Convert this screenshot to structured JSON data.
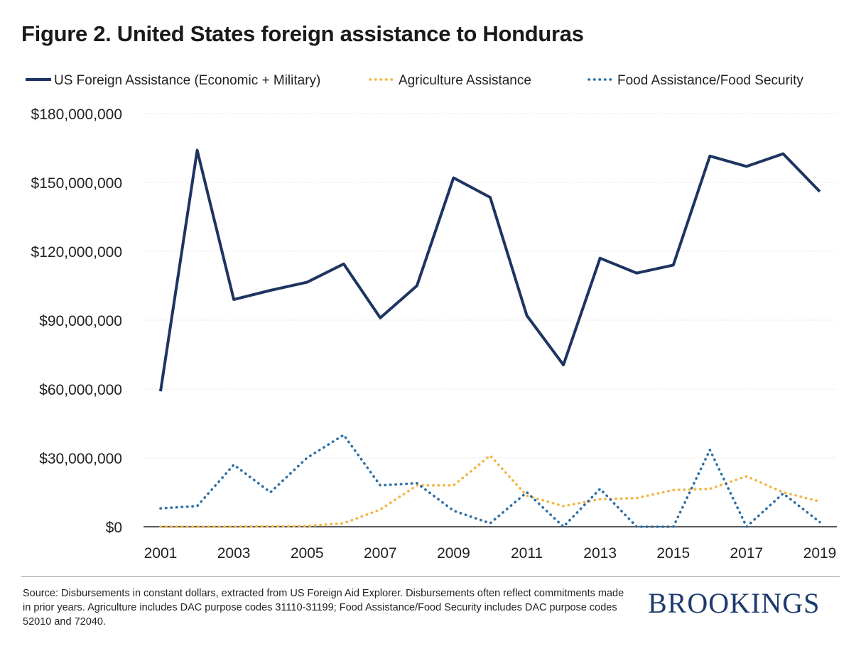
{
  "title": "Figure 2. United States foreign assistance to Honduras",
  "source": "Source: Disbursements in constant dollars, extracted from US Foreign Aid Explorer. Disbursements often reflect commitments made in prior years. Agriculture includes DAC purpose codes 31110-31199; Food Assistance/Food Security includes DAC purpose codes 52010 and 72040.",
  "brand": "BROOKINGS",
  "chart_data": {
    "type": "line",
    "title": "Figure 2. United States foreign assistance to Honduras",
    "xlabel": "",
    "ylabel": "",
    "ylim": [
      0,
      180000000
    ],
    "grid": "horizontal",
    "legend_position": "top",
    "x": [
      2001,
      2002,
      2003,
      2004,
      2005,
      2006,
      2007,
      2008,
      2009,
      2010,
      2011,
      2012,
      2013,
      2014,
      2015,
      2016,
      2017,
      2018,
      2019
    ],
    "x_tick_labels": [
      "2001",
      "2003",
      "2005",
      "2007",
      "2009",
      "2011",
      "2013",
      "2015",
      "2017",
      "2019"
    ],
    "y_ticks": [
      0,
      30000000,
      60000000,
      90000000,
      120000000,
      150000000,
      180000000
    ],
    "y_tick_labels": [
      "$0",
      "$30,000,000",
      "$60,000,000",
      "$90,000,000",
      "$120,000,000",
      "$150,000,000",
      "$180,000,000"
    ],
    "series": [
      {
        "name": "US Foreign Assistance (Economic + Military)",
        "style": "solid",
        "color": "#1e3461",
        "values": [
          59000000,
          164000000,
          99000000,
          103000000,
          106500000,
          114500000,
          91000000,
          105000000,
          152000000,
          143500000,
          92000000,
          70500000,
          117000000,
          110500000,
          114000000,
          161500000,
          157000000,
          162500000,
          146000000
        ]
      },
      {
        "name": "Agriculture Assistance",
        "style": "dotted",
        "color": "#f2b544",
        "values": [
          0,
          0,
          0,
          200000,
          300000,
          1500000,
          7500000,
          18000000,
          18000000,
          31000000,
          13500000,
          9000000,
          12000000,
          12500000,
          16000000,
          16500000,
          22000000,
          15000000,
          11000000
        ]
      },
      {
        "name": "Food Assistance/Food Security",
        "style": "dotted",
        "color": "#2b6fa6",
        "values": [
          8000000,
          9000000,
          27000000,
          15000000,
          30000000,
          40000000,
          18000000,
          19000000,
          7000000,
          1500000,
          15000000,
          0,
          16500000,
          0,
          0,
          33500000,
          0,
          14500000,
          2000000
        ]
      }
    ]
  }
}
